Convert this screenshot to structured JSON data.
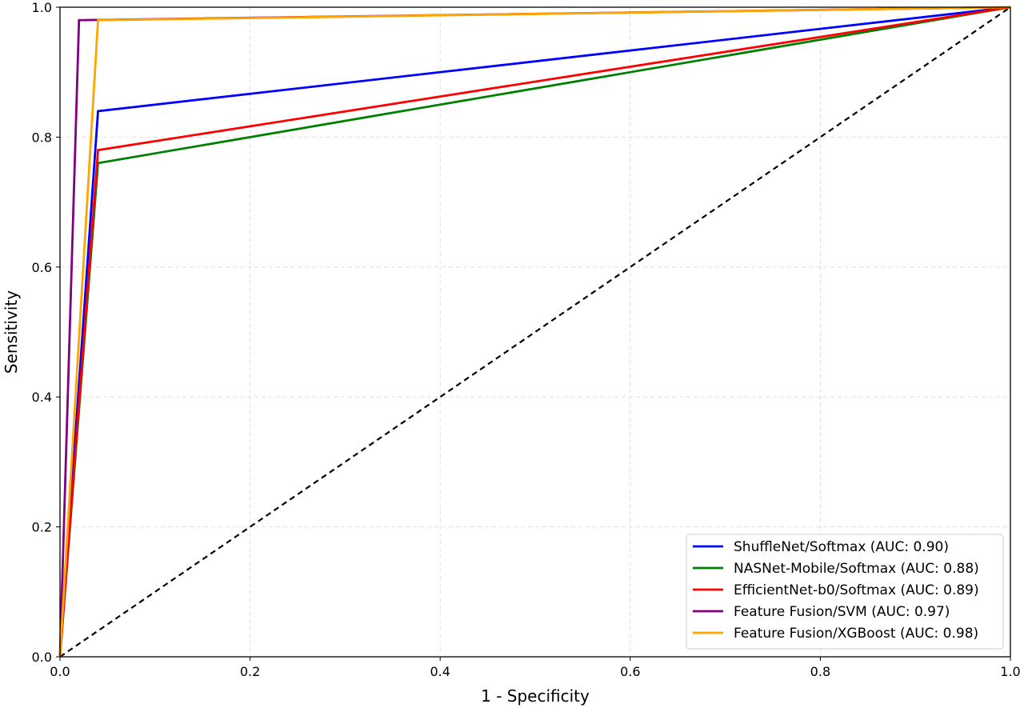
{
  "chart_data": {
    "type": "line",
    "title": "",
    "xlabel": "1 - Specificity",
    "ylabel": "Sensitivity",
    "xlim": [
      0.0,
      1.0
    ],
    "ylim": [
      0.0,
      1.0
    ],
    "xticks": [
      "0.0",
      "0.2",
      "0.4",
      "0.6",
      "0.8",
      "1.0"
    ],
    "yticks": [
      "0.0",
      "0.2",
      "0.4",
      "0.6",
      "0.8",
      "1.0"
    ],
    "grid": true,
    "legend_position": "lower-right",
    "series": [
      {
        "name": "ShuffleNet/Softmax (AUC: 0.90)",
        "color": "#0000ff",
        "x": [
          0.0,
          0.04,
          1.0
        ],
        "y": [
          0.0,
          0.84,
          1.0
        ]
      },
      {
        "name": "NASNet-Mobile/Softmax (AUC: 0.88)",
        "color": "#008000",
        "x": [
          0.0,
          0.04,
          1.0
        ],
        "y": [
          0.0,
          0.76,
          1.0
        ]
      },
      {
        "name": "EfficientNet-b0/Softmax (AUC: 0.89)",
        "color": "#ff0000",
        "x": [
          0.0,
          0.04,
          1.0
        ],
        "y": [
          0.0,
          0.78,
          1.0
        ]
      },
      {
        "name": "Feature Fusion/SVM (AUC: 0.97)",
        "color": "#800080",
        "x": [
          0.0,
          0.02,
          1.0
        ],
        "y": [
          0.0,
          0.98,
          1.0
        ]
      },
      {
        "name": "Feature Fusion/XGBoost (AUC: 0.98)",
        "color": "#ffa500",
        "x": [
          0.0,
          0.04,
          1.0
        ],
        "y": [
          0.0,
          0.98,
          1.0
        ]
      }
    ],
    "reference_line": {
      "color": "#000000",
      "style": "dashed",
      "x": [
        0.0,
        1.0
      ],
      "y": [
        0.0,
        1.0
      ]
    }
  }
}
